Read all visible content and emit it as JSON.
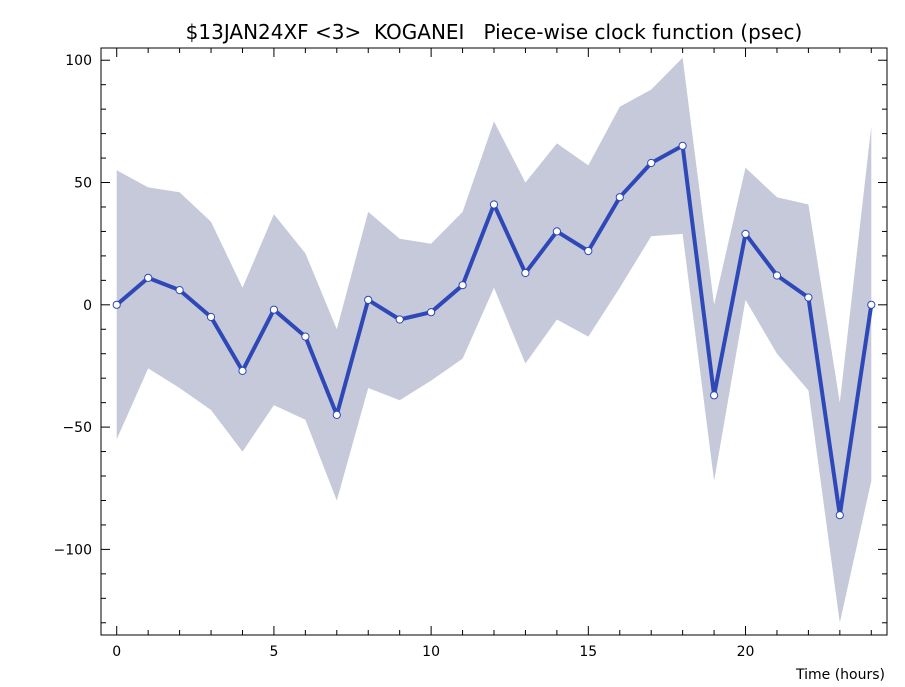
{
  "chart_data": {
    "type": "line",
    "title": "$13JAN24XF <3>  KOGANEI   Piece-wise clock function (psec)",
    "xlabel": "Time (hours)",
    "ylabel": "",
    "xlim": [
      -0.5,
      24.5
    ],
    "ylim": [
      -135,
      105
    ],
    "x_ticks": [
      0,
      5,
      10,
      15,
      20
    ],
    "y_ticks": [
      -100,
      -50,
      0,
      50,
      100
    ],
    "x_tick_labels": [
      "0",
      "5",
      "10",
      "15",
      "20"
    ],
    "y_tick_labels": [
      "−100",
      "−50",
      "0",
      "50",
      "100"
    ],
    "grid": false,
    "colors": {
      "line": "#2f48b8",
      "band": "#c5c9d9",
      "marker_fill": "#ffffff"
    },
    "series": [
      {
        "x": [
          0,
          1,
          2,
          3,
          4,
          5,
          6,
          7,
          8,
          9,
          10,
          11,
          12,
          13,
          14,
          15,
          16,
          17,
          18,
          19,
          20,
          21,
          22,
          23,
          24
        ],
        "values": [
          0,
          11,
          6,
          -5,
          -27,
          -2,
          -13,
          -45,
          2,
          -6,
          -3,
          8,
          41,
          13,
          30,
          22,
          44,
          58,
          65,
          -37,
          29,
          12,
          3,
          -86,
          0
        ],
        "upper": [
          55,
          48,
          46,
          34,
          7,
          37,
          21,
          -10,
          38,
          27,
          25,
          38,
          75,
          50,
          66,
          57,
          81,
          88,
          101,
          0,
          56,
          44,
          41,
          -40,
          73
        ],
        "lower": [
          -55,
          -26,
          -34,
          -43,
          -60,
          -41,
          -47,
          -80,
          -34,
          -39,
          -31,
          -22,
          7,
          -24,
          -6,
          -13,
          7,
          28,
          29,
          -72,
          2,
          -20,
          -35,
          -130,
          -72
        ]
      }
    ]
  }
}
